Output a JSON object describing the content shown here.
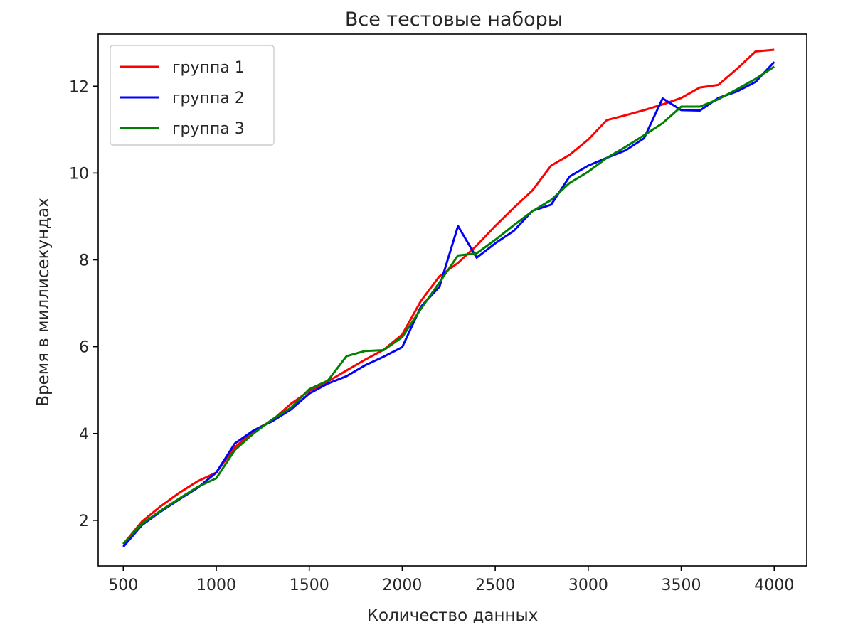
{
  "chart_data": {
    "type": "line",
    "title": "Все тестовые наборы",
    "xlabel": "Количество данных",
    "ylabel": "Время в миллисекундах",
    "xlim": [
      365,
      4175
    ],
    "ylim": [
      0.95,
      13.2
    ],
    "xticks": [
      500,
      1000,
      1500,
      2000,
      2500,
      3000,
      3500,
      4000
    ],
    "yticks": [
      2,
      4,
      6,
      8,
      10,
      12
    ],
    "grid": false,
    "legend_position": "top-left",
    "x": [
      500,
      600,
      700,
      800,
      900,
      1000,
      1100,
      1200,
      1300,
      1400,
      1500,
      1600,
      1700,
      1800,
      1900,
      2000,
      2100,
      2200,
      2300,
      2400,
      2500,
      2600,
      2700,
      2800,
      2900,
      3000,
      3100,
      3200,
      3300,
      3400,
      3500,
      3600,
      3700,
      3800,
      3900,
      4000
    ],
    "series": [
      {
        "name": "группа 1",
        "color": "#ff0000",
        "values": [
          1.45,
          1.97,
          2.32,
          2.63,
          2.9,
          3.1,
          3.68,
          4.06,
          4.3,
          4.68,
          4.98,
          5.2,
          5.45,
          5.7,
          5.93,
          6.28,
          7.05,
          7.62,
          7.93,
          8.33,
          8.78,
          9.2,
          9.6,
          10.17,
          10.42,
          10.77,
          11.22,
          11.33,
          11.45,
          11.58,
          11.73,
          11.97,
          12.03,
          12.4,
          12.8,
          12.84
        ]
      },
      {
        "name": "группа 2",
        "color": "#0000ff",
        "values": [
          1.39,
          1.89,
          2.2,
          2.48,
          2.75,
          3.1,
          3.77,
          4.07,
          4.28,
          4.55,
          4.92,
          5.15,
          5.32,
          5.57,
          5.77,
          5.99,
          6.92,
          7.38,
          8.78,
          8.05,
          8.38,
          8.67,
          9.13,
          9.27,
          9.92,
          10.17,
          10.35,
          10.52,
          10.8,
          11.72,
          11.45,
          11.44,
          11.73,
          11.88,
          12.1,
          12.56
        ]
      },
      {
        "name": "группа 3",
        "color": "#008000",
        "values": [
          1.46,
          1.92,
          2.22,
          2.5,
          2.77,
          2.97,
          3.62,
          4.0,
          4.32,
          4.59,
          5.02,
          5.22,
          5.78,
          5.9,
          5.92,
          6.22,
          6.87,
          7.48,
          8.1,
          8.15,
          8.46,
          8.8,
          9.12,
          9.38,
          9.77,
          10.03,
          10.35,
          10.6,
          10.87,
          11.15,
          11.53,
          11.53,
          11.7,
          11.93,
          12.17,
          12.45
        ]
      }
    ]
  }
}
